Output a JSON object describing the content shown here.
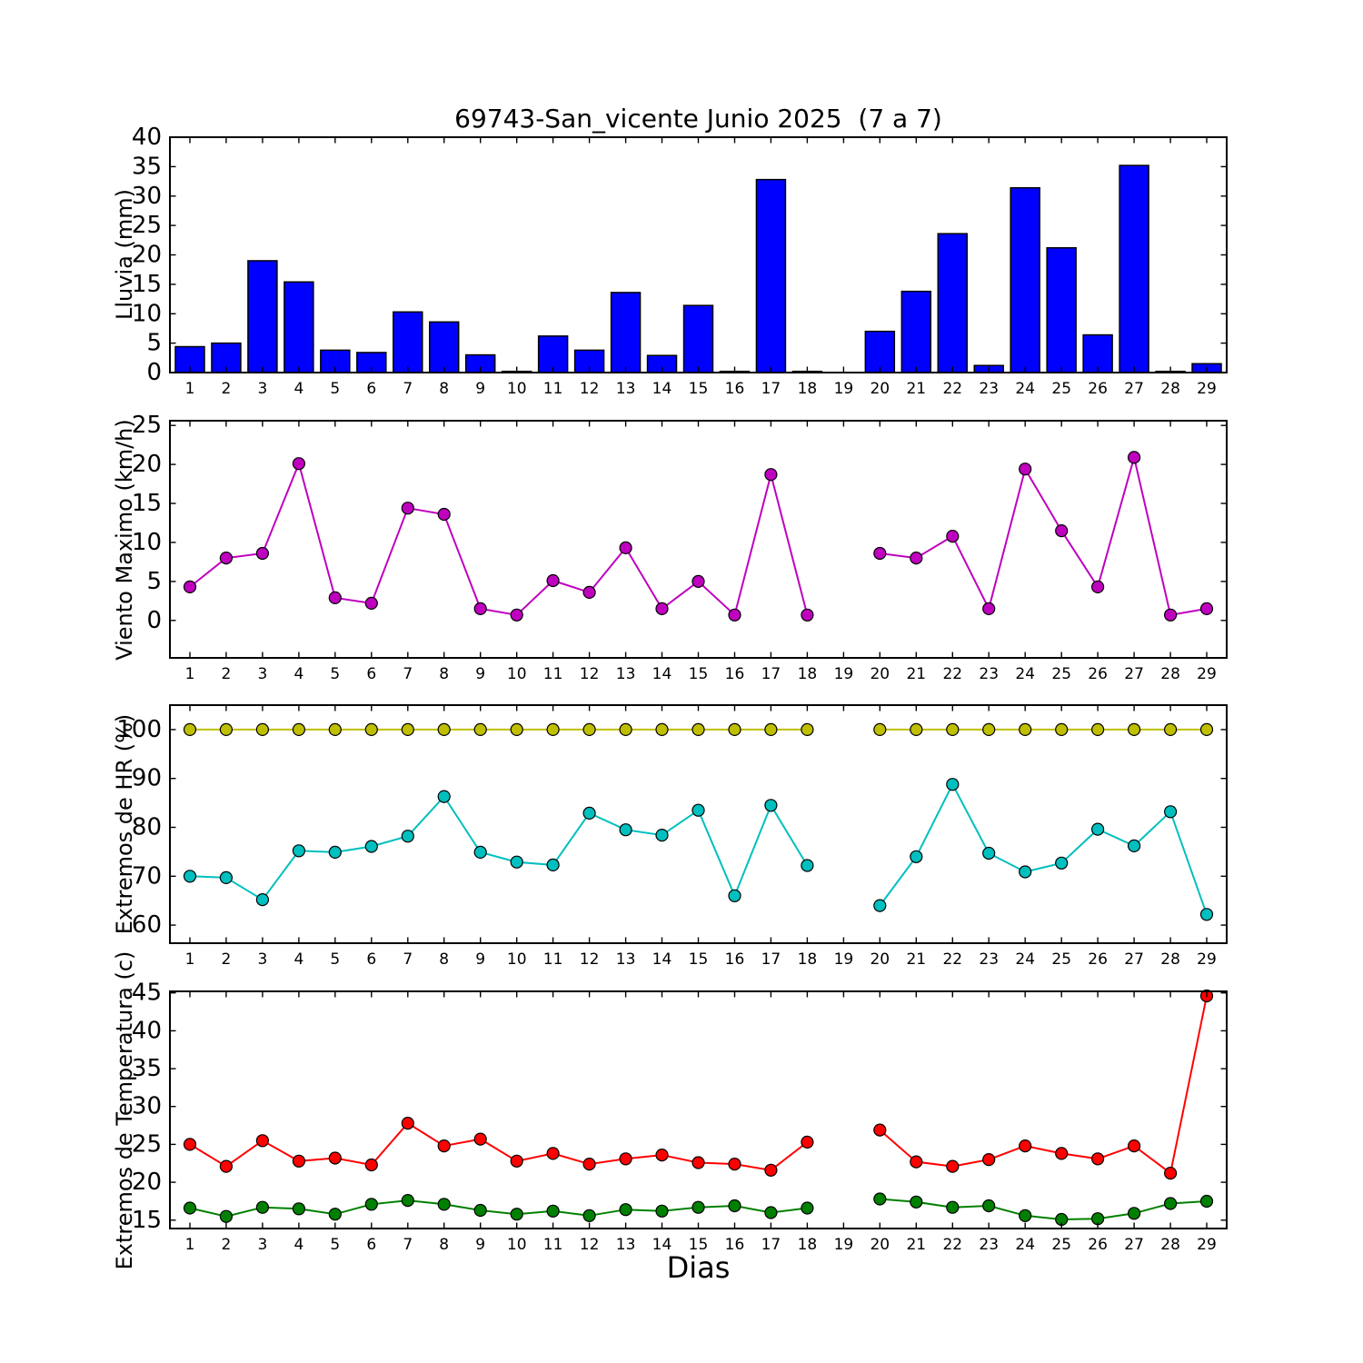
{
  "figure": {
    "title": "69743-San_vicente Junio 2025  (7 a 7)",
    "xlabel": "Dias",
    "background": "#ffffff"
  },
  "chart_data": {
    "days": [
      1,
      2,
      3,
      4,
      5,
      6,
      7,
      8,
      9,
      10,
      11,
      12,
      13,
      14,
      15,
      16,
      17,
      18,
      19,
      20,
      21,
      22,
      23,
      24,
      25,
      26,
      27,
      28,
      29
    ],
    "note_missing_day": 19,
    "subplots": [
      {
        "id": "lluvia",
        "type": "bar",
        "ylabel": "Lluvia (mm)",
        "color": "#0000ff",
        "bar_edge_color": "#000000",
        "ylim": [
          0,
          40
        ],
        "yticks": [
          0,
          5,
          10,
          15,
          20,
          25,
          30,
          35,
          40
        ],
        "values": [
          4.4,
          5.0,
          19.0,
          15.4,
          3.8,
          3.4,
          10.3,
          8.6,
          3.0,
          0.2,
          6.2,
          3.8,
          13.6,
          2.9,
          11.4,
          0.2,
          32.8,
          0.2,
          null,
          7.0,
          13.8,
          23.6,
          1.2,
          31.4,
          21.2,
          6.4,
          35.2,
          0.2,
          1.5
        ]
      },
      {
        "id": "viento",
        "type": "line",
        "ylabel": "Viento Maximo (km/h)",
        "ylim": [
          -4.8,
          25.6
        ],
        "yticks": [
          0,
          5,
          10,
          15,
          20,
          25
        ],
        "series": [
          {
            "name": "viento-maximo",
            "color": "#bf00bf",
            "values": [
              4.3,
              8.0,
              8.6,
              20.1,
              2.9,
              2.2,
              14.4,
              13.6,
              1.5,
              0.7,
              5.1,
              3.6,
              9.3,
              1.5,
              5.0,
              0.7,
              18.7,
              0.7,
              null,
              8.6,
              8.0,
              10.8,
              1.5,
              19.4,
              11.5,
              4.3,
              20.9,
              0.7,
              1.5
            ]
          }
        ]
      },
      {
        "id": "hr",
        "type": "line",
        "ylabel": "Extremos de HR (%)",
        "ylim": [
          56.3,
          105
        ],
        "yticks": [
          60,
          70,
          80,
          90,
          100
        ],
        "series": [
          {
            "name": "hr-maxima",
            "color": "#bfbf00",
            "values": [
              100,
              100,
              100,
              100,
              100,
              100,
              100,
              100,
              100,
              100,
              100,
              100,
              100,
              100,
              100,
              100,
              100,
              100,
              null,
              100,
              100,
              100,
              100,
              100,
              100,
              100,
              100,
              100,
              100
            ]
          },
          {
            "name": "hr-minima",
            "color": "#00bfbf",
            "values": [
              70.0,
              69.7,
              65.2,
              75.2,
              74.9,
              76.1,
              78.2,
              86.3,
              74.9,
              72.9,
              72.3,
              82.9,
              79.5,
              78.4,
              83.5,
              66.0,
              84.5,
              72.2,
              null,
              64.0,
              74.0,
              88.8,
              74.7,
              70.9,
              72.7,
              79.6,
              76.2,
              83.2,
              62.2
            ]
          }
        ]
      },
      {
        "id": "temperatura",
        "type": "line",
        "ylabel": "Extremos de Temperatura (c)",
        "ylim": [
          13.9,
          45.2
        ],
        "yticks": [
          15,
          20,
          25,
          30,
          35,
          40,
          45
        ],
        "series": [
          {
            "name": "temperatura-maxima",
            "color": "#ff0000",
            "values": [
              25.0,
              22.1,
              25.5,
              22.8,
              23.2,
              22.3,
              27.8,
              24.8,
              25.7,
              22.8,
              23.8,
              22.4,
              23.1,
              23.6,
              22.6,
              22.4,
              21.6,
              25.3,
              null,
              26.9,
              22.7,
              22.1,
              23.0,
              24.8,
              23.8,
              23.1,
              24.8,
              21.2,
              44.6
            ]
          },
          {
            "name": "temperatura-minima",
            "color": "#008000",
            "values": [
              16.6,
              15.5,
              16.7,
              16.5,
              15.8,
              17.1,
              17.6,
              17.1,
              16.3,
              15.8,
              16.2,
              15.6,
              16.4,
              16.2,
              16.7,
              16.9,
              16.0,
              16.6,
              null,
              17.8,
              17.4,
              16.7,
              16.9,
              15.6,
              15.1,
              15.2,
              15.9,
              17.2,
              17.5
            ]
          }
        ]
      }
    ]
  }
}
